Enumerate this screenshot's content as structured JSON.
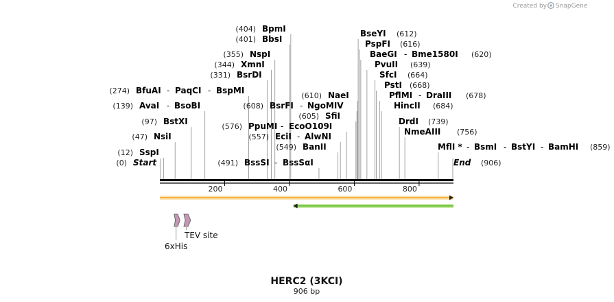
{
  "header": {
    "created_by": "Created by",
    "brand": "SnapGene"
  },
  "map": {
    "sequence_length": 906,
    "ticks": [
      {
        "pos": 200,
        "label": "200"
      },
      {
        "pos": 400,
        "label": "400"
      },
      {
        "pos": 600,
        "label": "600"
      },
      {
        "pos": 800,
        "label": "800"
      }
    ],
    "start": {
      "pos": 0,
      "pos_label": "(0)",
      "label": "Start"
    },
    "end": {
      "pos": 906,
      "pos_label": "(906)",
      "label": "End"
    },
    "sites": [
      {
        "site": 404,
        "pos": "(404)",
        "enzymes": [
          "BpmI"
        ]
      },
      {
        "site": 401,
        "pos": "(401)",
        "enzymes": [
          "BbsI"
        ]
      },
      {
        "site": 355,
        "pos": "(355)",
        "enzymes": [
          "NspI"
        ]
      },
      {
        "site": 344,
        "pos": "(344)",
        "enzymes": [
          "XmnI"
        ]
      },
      {
        "site": 331,
        "pos": "(331)",
        "enzymes": [
          "BsrDI"
        ]
      },
      {
        "site": 274,
        "pos": "(274)",
        "enzymes": [
          "BfuAI",
          "PaqCI",
          "BspMI"
        ]
      },
      {
        "site": 139,
        "pos": "(139)",
        "enzymes": [
          "AvaI",
          "BsoBI"
        ]
      },
      {
        "site": 97,
        "pos": "(97)",
        "enzymes": [
          "BstXI"
        ]
      },
      {
        "site": 47,
        "pos": "(47)",
        "enzymes": [
          "NsiI"
        ]
      },
      {
        "site": 12,
        "pos": "(12)",
        "enzymes": [
          "SspI"
        ]
      },
      {
        "site": 608,
        "pos": "(608)",
        "enzymes": [
          "BsrFI",
          "NgoMIV"
        ]
      },
      {
        "site": 610,
        "pos": "(610)",
        "enzymes": [
          "NaeI"
        ]
      },
      {
        "site": 605,
        "pos": "(605)",
        "enzymes": [
          "SfiI"
        ]
      },
      {
        "site": 576,
        "pos": "(576)",
        "enzymes": [
          "PpuMI",
          "EcoO109I"
        ]
      },
      {
        "site": 557,
        "pos": "(557)",
        "enzymes": [
          "EciI",
          "AlwNI"
        ]
      },
      {
        "site": 549,
        "pos": "(549)",
        "enzymes": [
          "BanII"
        ]
      },
      {
        "site": 491,
        "pos": "(491)",
        "enzymes": [
          "BssSI",
          "BssSαI"
        ]
      },
      {
        "site": 612,
        "pos": "(612)",
        "enzymes": [
          "BseYI"
        ]
      },
      {
        "site": 616,
        "pos": "(616)",
        "enzymes": [
          "PspFI"
        ]
      },
      {
        "site": 620,
        "pos": "(620)",
        "enzymes": [
          "BaeGI",
          "Bme1580I"
        ]
      },
      {
        "site": 639,
        "pos": "(639)",
        "enzymes": [
          "PvuII"
        ]
      },
      {
        "site": 664,
        "pos": "(664)",
        "enzymes": [
          "SfcI"
        ]
      },
      {
        "site": 668,
        "pos": "(668)",
        "enzymes": [
          "PstI"
        ]
      },
      {
        "site": 678,
        "pos": "(678)",
        "enzymes": [
          "PflMI",
          "DraIII"
        ]
      },
      {
        "site": 684,
        "pos": "(684)",
        "enzymes": [
          "HincII"
        ]
      },
      {
        "site": 739,
        "pos": "(739)",
        "enzymes": [
          "DrdI"
        ]
      },
      {
        "site": 756,
        "pos": "(756)",
        "enzymes": [
          "NmeAIII"
        ]
      },
      {
        "site": 859,
        "pos": "(859)",
        "enzymes": [
          "MflI *",
          "BsmI",
          "BstYI",
          "BamHI"
        ]
      }
    ],
    "features": [
      {
        "name": "orange-feature",
        "start": 0,
        "end": 906,
        "direction": "forward",
        "color": "#f6b13b",
        "fill": "#fbe4b6"
      },
      {
        "name": "green-feature",
        "start": 412,
        "end": 906,
        "direction": "reverse",
        "color": "#6dc23a",
        "fill": "#c7e9a8"
      }
    ],
    "small_features": [
      {
        "name": "6xHis",
        "label": "6xHis",
        "start": 44,
        "end": 62,
        "color": "#c597b6"
      },
      {
        "name": "TEV site",
        "label": "TEV site",
        "start": 74,
        "end": 95,
        "color": "#c597b6"
      }
    ]
  },
  "footer": {
    "title": "HERC2 (3KCI)",
    "subtitle": "906 bp"
  }
}
